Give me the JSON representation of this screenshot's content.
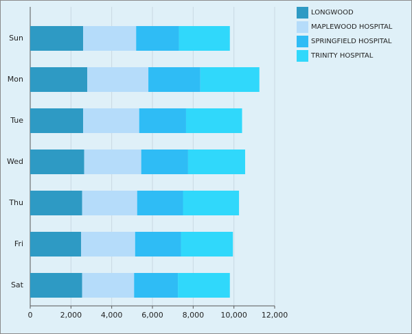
{
  "chart_data": {
    "type": "stacked-bar-horizontal",
    "categories": [
      "Sun",
      "Mon",
      "Tue",
      "Wed",
      "Thu",
      "Fri",
      "Sat"
    ],
    "series": [
      {
        "name": "LONGWOOD",
        "color": "#2e9ac4",
        "values": [
          2600,
          2800,
          2600,
          2650,
          2550,
          2500,
          2550
        ]
      },
      {
        "name": "MAPLEWOOD HOSPITAL",
        "color": "#b5dcfa",
        "values": [
          2600,
          3000,
          2750,
          2800,
          2700,
          2650,
          2550
        ]
      },
      {
        "name": "SPRINGFIELD HOSPITAL",
        "color": "#2fbcf5",
        "values": [
          2100,
          2550,
          2300,
          2300,
          2250,
          2250,
          2150
        ]
      },
      {
        "name": "TRINITY HOSPITAL",
        "color": "#30d8fb",
        "values": [
          2500,
          2900,
          2750,
          2800,
          2750,
          2550,
          2550
        ]
      }
    ],
    "xlim": [
      0,
      12000
    ],
    "xticks": [
      0,
      {
        "value": 2000,
        "label": "2,000"
      },
      {
        "value": 4000,
        "label": "4,000"
      },
      {
        "value": 6000,
        "label": "6,000"
      },
      {
        "value": 8000,
        "label": "8,000"
      },
      {
        "value": 10000,
        "label": "10,000"
      },
      {
        "value": 12000,
        "label": "12,000"
      }
    ],
    "grid": true
  }
}
